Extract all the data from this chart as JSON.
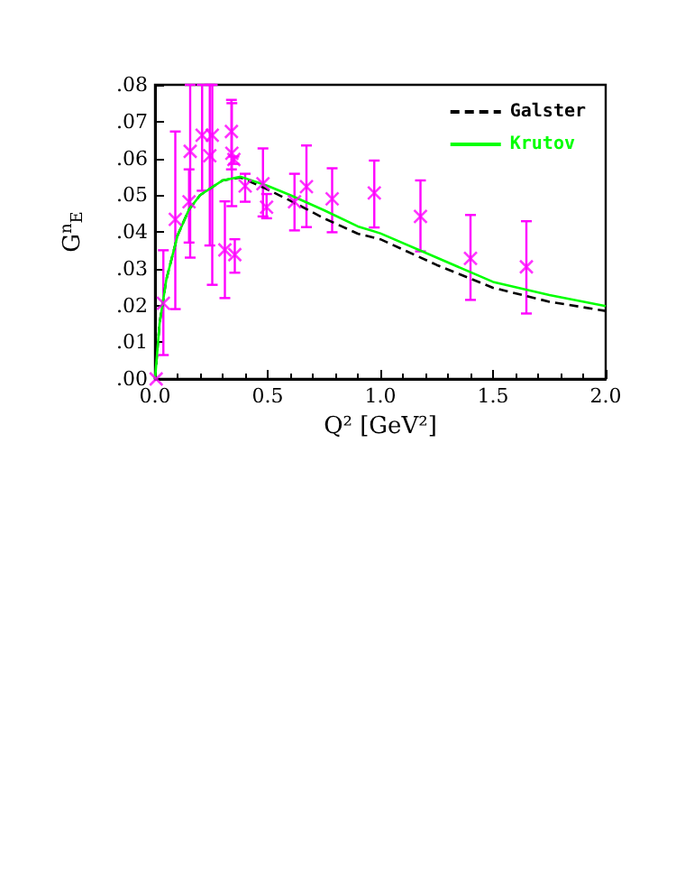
{
  "chart_data": {
    "type": "scatter",
    "xlabel": "Q² [GeV²]",
    "ylabel": "G$^{n}$$_{E}$",
    "xlim": [
      0,
      2.0
    ],
    "ylim": [
      0,
      0.08
    ],
    "xticks": [
      {
        "value": 0,
        "label": "0.0"
      },
      {
        "value": 0.5,
        "label": "0.5"
      },
      {
        "value": 1.0,
        "label": "1.0"
      },
      {
        "value": 1.5,
        "label": "1.5"
      },
      {
        "value": 2.0,
        "label": "2.0"
      }
    ],
    "yticks": [
      {
        "value": 0,
        "label": ".00"
      },
      {
        "value": 0.01,
        "label": ".01"
      },
      {
        "value": 0.02,
        "label": ".02"
      },
      {
        "value": 0.03,
        "label": ".03"
      },
      {
        "value": 0.04,
        "label": ".04"
      },
      {
        "value": 0.05,
        "label": ".05"
      },
      {
        "value": 0.06,
        "label": ".06"
      },
      {
        "value": 0.07,
        "label": ".07"
      },
      {
        "value": 0.08,
        "label": ".08"
      }
    ],
    "grid": false,
    "legend": "top right",
    "series": [
      {
        "color": "#ff00ff",
        "marker": "cross",
        "x": [
          0.005,
          0.037,
          0.09,
          0.151,
          0.156,
          0.209,
          0.243,
          0.254,
          0.31,
          0.339,
          0.341,
          0.35,
          0.354,
          0.4,
          0.479,
          0.495,
          0.619,
          0.672,
          0.786,
          0.973,
          1.178,
          1.4,
          1.648
        ],
        "values": [
          0.0,
          0.0206,
          0.0434,
          0.0482,
          0.0619,
          0.0663,
          0.0607,
          0.0663,
          0.0351,
          0.0673,
          0.0614,
          0.0597,
          0.0338,
          0.0525,
          0.0531,
          0.0467,
          0.0482,
          0.0523,
          0.049,
          0.0506,
          0.0442,
          0.0328,
          0.0305
        ],
        "errors": [
          null,
          [
            0.0065,
            0.035
          ],
          [
            0.019,
            0.0673
          ],
          [
            0.0371,
            0.057
          ],
          [
            0.033,
            0.08
          ],
          [
            0.0512,
            0.08
          ],
          [
            0.0363,
            0.08
          ],
          [
            0.0256,
            0.08
          ],
          [
            0.022,
            0.0483
          ],
          [
            0.057,
            0.0759
          ],
          [
            0.047,
            0.075
          ],
          [
            0.0585,
            0.0605
          ],
          [
            0.0289,
            0.038
          ],
          [
            0.0482,
            0.0558
          ],
          [
            0.0442,
            0.0627
          ],
          [
            0.0437,
            0.0503
          ],
          [
            0.0404,
            0.0558
          ],
          [
            0.0413,
            0.0635
          ],
          [
            0.0399,
            0.0573
          ],
          [
            0.0412,
            0.0594
          ],
          [
            0.0347,
            0.054
          ],
          [
            0.0215,
            0.0446
          ],
          [
            0.0178,
            0.0429
          ]
        ]
      },
      {
        "type": "line",
        "name": "Galster",
        "color": "#000000",
        "line_style": "dashed",
        "marker": "none",
        "x": [
          0,
          0.02,
          0.05,
          0.1,
          0.15,
          0.2,
          0.3,
          0.38,
          0.5,
          0.6,
          0.75,
          0.9,
          1.0,
          1.25,
          1.5,
          1.75,
          2.0
        ],
        "values": [
          0,
          0.015,
          0.027,
          0.039,
          0.046,
          0.05,
          0.054,
          0.0548,
          0.0515,
          0.0485,
          0.0437,
          0.0395,
          0.038,
          0.031,
          0.0248,
          0.021,
          0.0185
        ]
      },
      {
        "type": "line",
        "name": "Krutov",
        "color": "#00ff00",
        "line_style": "solid",
        "marker": "none",
        "x": [
          0,
          0.02,
          0.05,
          0.1,
          0.15,
          0.2,
          0.3,
          0.38,
          0.5,
          0.6,
          0.75,
          0.9,
          1.0,
          1.25,
          1.5,
          1.75,
          2.0
        ],
        "values": [
          0,
          0.015,
          0.027,
          0.039,
          0.046,
          0.05,
          0.054,
          0.055,
          0.0525,
          0.05,
          0.0459,
          0.0415,
          0.0396,
          0.033,
          0.0264,
          0.0228,
          0.0198
        ]
      }
    ]
  }
}
